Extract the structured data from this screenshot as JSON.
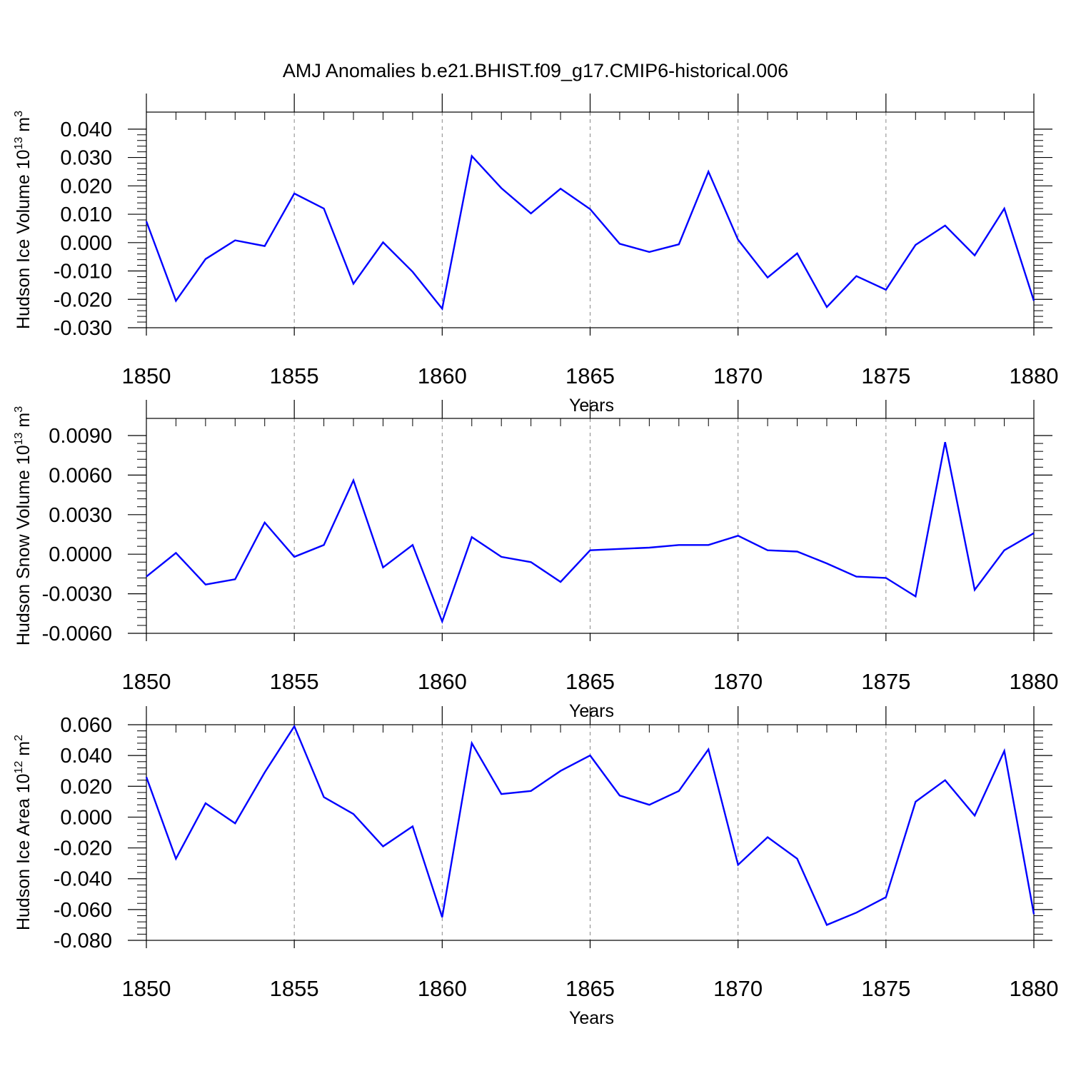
{
  "title": "AMJ Anomalies b.e21.BHIST.f09_g17.CMIP6-historical.006",
  "colors": {
    "line": "#0000ff",
    "axis": "#000000",
    "grid": "#888888"
  },
  "chart_data": [
    {
      "type": "line",
      "ylabel": "Hudson Ice Volume 10",
      "ylabel_sup": "13",
      "ylabel_unit": " m",
      "ylabel_unit_sup": "3",
      "xlabel": "Years",
      "xlim": [
        1850,
        1880
      ],
      "ylim": [
        -0.03,
        0.046
      ],
      "xticks": [
        "1850",
        "1855",
        "1860",
        "1865",
        "1870",
        "1875",
        "1880"
      ],
      "yticks": [
        {
          "v": 0.04,
          "label": "0.040"
        },
        {
          "v": 0.03,
          "label": "0.030"
        },
        {
          "v": 0.02,
          "label": "0.020"
        },
        {
          "v": 0.01,
          "label": "0.010"
        },
        {
          "v": 0.0,
          "label": "0.000"
        },
        {
          "v": -0.01,
          "label": "-0.010"
        },
        {
          "v": -0.02,
          "label": "-0.020"
        },
        {
          "v": -0.03,
          "label": "-0.030"
        }
      ],
      "grid_x": true,
      "x": [
        1850,
        1851,
        1852,
        1853,
        1854,
        1855,
        1856,
        1857,
        1858,
        1859,
        1860,
        1861,
        1862,
        1863,
        1864,
        1865,
        1866,
        1867,
        1868,
        1869,
        1870,
        1871,
        1872,
        1873,
        1874,
        1875,
        1876,
        1877,
        1878,
        1879,
        1880
      ],
      "series": [
        {
          "values": [
            0.0075,
            -0.0205,
            -0.0058,
            0.0008,
            -0.0012,
            0.0173,
            0.012,
            -0.0145,
            0.0001,
            -0.0103,
            -0.0233,
            0.0305,
            0.0192,
            0.0103,
            0.019,
            0.0118,
            -0.0004,
            -0.0033,
            -0.0006,
            0.025,
            0.001,
            -0.0123,
            -0.0038,
            -0.0227,
            -0.0118,
            -0.0166,
            -0.0008,
            0.006,
            -0.0045,
            0.012,
            -0.0205
          ]
        }
      ]
    },
    {
      "type": "line",
      "ylabel": "Hudson Snow Volume 10",
      "ylabel_sup": "13",
      "ylabel_unit": " m",
      "ylabel_unit_sup": "3",
      "xlabel": "Years",
      "xlim": [
        1850,
        1880
      ],
      "ylim": [
        -0.006,
        0.0103
      ],
      "xticks": [
        "1850",
        "1855",
        "1860",
        "1865",
        "1870",
        "1875",
        "1880"
      ],
      "yticks": [
        {
          "v": 0.009,
          "label": "0.0090"
        },
        {
          "v": 0.006,
          "label": "0.0060"
        },
        {
          "v": 0.003,
          "label": "0.0030"
        },
        {
          "v": 0.0,
          "label": "0.0000"
        },
        {
          "v": -0.003,
          "label": "-0.0030"
        },
        {
          "v": -0.006,
          "label": "-0.0060"
        }
      ],
      "grid_x": true,
      "x": [
        1850,
        1851,
        1852,
        1853,
        1854,
        1855,
        1856,
        1857,
        1858,
        1859,
        1860,
        1861,
        1862,
        1863,
        1864,
        1865,
        1866,
        1867,
        1868,
        1869,
        1870,
        1871,
        1872,
        1873,
        1874,
        1875,
        1876,
        1877,
        1878,
        1879,
        1880
      ],
      "series": [
        {
          "values": [
            -0.0017,
            0.0001,
            -0.0023,
            -0.0019,
            0.0024,
            -0.0002,
            0.0007,
            0.0056,
            -0.001,
            0.0007,
            -0.0051,
            0.0013,
            -0.0002,
            -0.0006,
            -0.0021,
            0.0003,
            0.0004,
            0.0005,
            0.0007,
            0.0007,
            0.0014,
            0.0003,
            0.0002,
            -0.0007,
            -0.0017,
            -0.0018,
            -0.0032,
            0.0085,
            -0.0027,
            0.0003,
            0.0016
          ]
        }
      ]
    },
    {
      "type": "line",
      "ylabel": "Hudson Ice Area 10",
      "ylabel_sup": "12",
      "ylabel_unit": " m",
      "ylabel_unit_sup": "2",
      "xlabel": "Years",
      "xlim": [
        1850,
        1880
      ],
      "ylim": [
        -0.08,
        0.06
      ],
      "xticks": [
        "1850",
        "1855",
        "1860",
        "1865",
        "1870",
        "1875",
        "1880"
      ],
      "yticks": [
        {
          "v": 0.06,
          "label": "0.060"
        },
        {
          "v": 0.04,
          "label": "0.040"
        },
        {
          "v": 0.02,
          "label": "0.020"
        },
        {
          "v": 0.0,
          "label": "0.000"
        },
        {
          "v": -0.02,
          "label": "-0.020"
        },
        {
          "v": -0.04,
          "label": "-0.040"
        },
        {
          "v": -0.06,
          "label": "-0.060"
        },
        {
          "v": -0.08,
          "label": "-0.080"
        }
      ],
      "grid_x": true,
      "x": [
        1850,
        1851,
        1852,
        1853,
        1854,
        1855,
        1856,
        1857,
        1858,
        1859,
        1860,
        1861,
        1862,
        1863,
        1864,
        1865,
        1866,
        1867,
        1868,
        1869,
        1870,
        1871,
        1872,
        1873,
        1874,
        1875,
        1876,
        1877,
        1878,
        1879,
        1880
      ],
      "series": [
        {
          "values": [
            0.026,
            -0.027,
            0.009,
            -0.004,
            0.029,
            0.059,
            0.013,
            0.002,
            -0.019,
            -0.006,
            -0.065,
            0.048,
            0.015,
            0.017,
            0.03,
            0.04,
            0.014,
            0.008,
            0.017,
            0.044,
            -0.031,
            -0.013,
            -0.027,
            -0.07,
            -0.062,
            -0.052,
            0.01,
            0.024,
            0.001,
            0.043,
            -0.063
          ]
        }
      ]
    }
  ]
}
